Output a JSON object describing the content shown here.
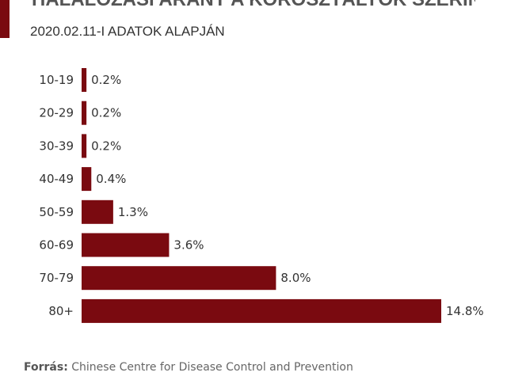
{
  "header": {
    "title": "HALÁLOZÁSI ARÁNY A KOROSZTÁLYOK SZERINT",
    "subtitle": "2020.02.11-I ADATOK ALAPJÁN"
  },
  "source": {
    "label": "Forrás:",
    "text": "Chinese Centre for Disease Control and Prevention"
  },
  "colors": {
    "bar": "#7a0a10",
    "accent": "#7a0a10"
  },
  "chart_data": {
    "type": "bar",
    "orientation": "horizontal",
    "categories": [
      "10-19",
      "20-29",
      "30-39",
      "40-49",
      "50-59",
      "60-69",
      "70-79",
      "80+"
    ],
    "values": [
      0.2,
      0.2,
      0.2,
      0.4,
      1.3,
      3.6,
      8.0,
      14.8
    ],
    "value_labels": [
      "0.2%",
      "0.2%",
      "0.2%",
      "0.4%",
      "1.3%",
      "3.6%",
      "8.0%",
      "14.8%"
    ],
    "title": "HALÁLOZÁSI ARÁNY A KOROSZTÁLYOK SZERINT",
    "subtitle": "2020.02.11-I ADATOK ALAPJÁN",
    "xlabel": "",
    "ylabel": "",
    "xlim": [
      0,
      14.8
    ],
    "grid": false,
    "legend": "none"
  }
}
